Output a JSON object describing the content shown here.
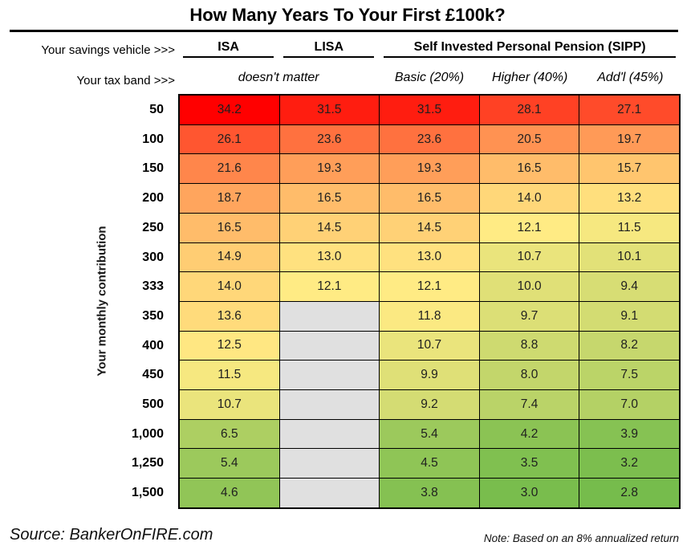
{
  "title": "How Many Years To Your First £100k?",
  "header": {
    "vehicle_label": "Your savings vehicle >>>",
    "tax_label": "Your tax band >>>",
    "vehicles": [
      "ISA",
      "LISA",
      "Self Invested Personal Pension (SIPP)"
    ],
    "tax_bands": [
      "doesn't matter",
      "Basic (20%)",
      "Higher (40%)",
      "Add'l (45%)"
    ]
  },
  "y_axis_label": "Your monthly contribution",
  "footer": {
    "source": "Source: BankerOnFIRE.com",
    "note": "Note: Based on an 8% annualized return"
  },
  "chart_data": {
    "type": "heatmap",
    "title": "How Many Years To Your First £100k?",
    "unit": "years",
    "ylabel": "Your monthly contribution",
    "columns": [
      "ISA",
      "LISA",
      "SIPP Basic (20%)",
      "SIPP Higher (40%)",
      "SIPP Add'l (45%)"
    ],
    "column_groups": [
      {
        "vehicle": "ISA",
        "tax_band": "doesn't matter"
      },
      {
        "vehicle": "LISA",
        "tax_band": "doesn't matter"
      },
      {
        "vehicle": "Self Invested Personal Pension (SIPP)",
        "tax_bands": [
          "Basic (20%)",
          "Higher (40%)",
          "Add'l (45%)"
        ]
      }
    ],
    "rows": [
      "50",
      "100",
      "150",
      "200",
      "250",
      "300",
      "333",
      "350",
      "400",
      "450",
      "500",
      "1,000",
      "1,250",
      "1,500"
    ],
    "values": [
      [
        34.2,
        31.5,
        31.5,
        28.1,
        27.1
      ],
      [
        26.1,
        23.6,
        23.6,
        20.5,
        19.7
      ],
      [
        21.6,
        19.3,
        19.3,
        16.5,
        15.7
      ],
      [
        18.7,
        16.5,
        16.5,
        14.0,
        13.2
      ],
      [
        16.5,
        14.5,
        14.5,
        12.1,
        11.5
      ],
      [
        14.9,
        13.0,
        13.0,
        10.7,
        10.1
      ],
      [
        14.0,
        12.1,
        12.1,
        10.0,
        9.4
      ],
      [
        13.6,
        null,
        11.8,
        9.7,
        9.1
      ],
      [
        12.5,
        null,
        10.7,
        8.8,
        8.2
      ],
      [
        11.5,
        null,
        9.9,
        8.0,
        7.5
      ],
      [
        10.7,
        null,
        9.2,
        7.4,
        7.0
      ],
      [
        6.5,
        null,
        5.4,
        4.2,
        3.9
      ],
      [
        5.4,
        null,
        4.5,
        3.5,
        3.2
      ],
      [
        4.6,
        null,
        3.8,
        3.0,
        2.8
      ]
    ],
    "colormap": {
      "min_value": 2.8,
      "mid_value": 12.1,
      "max_value": 34.2,
      "min_color": "#76BC4C",
      "mid_color": "#FFEB84",
      "max_color": "#FF0000",
      "empty_color": "#E0E0E0",
      "grid_color": "#000000"
    }
  }
}
